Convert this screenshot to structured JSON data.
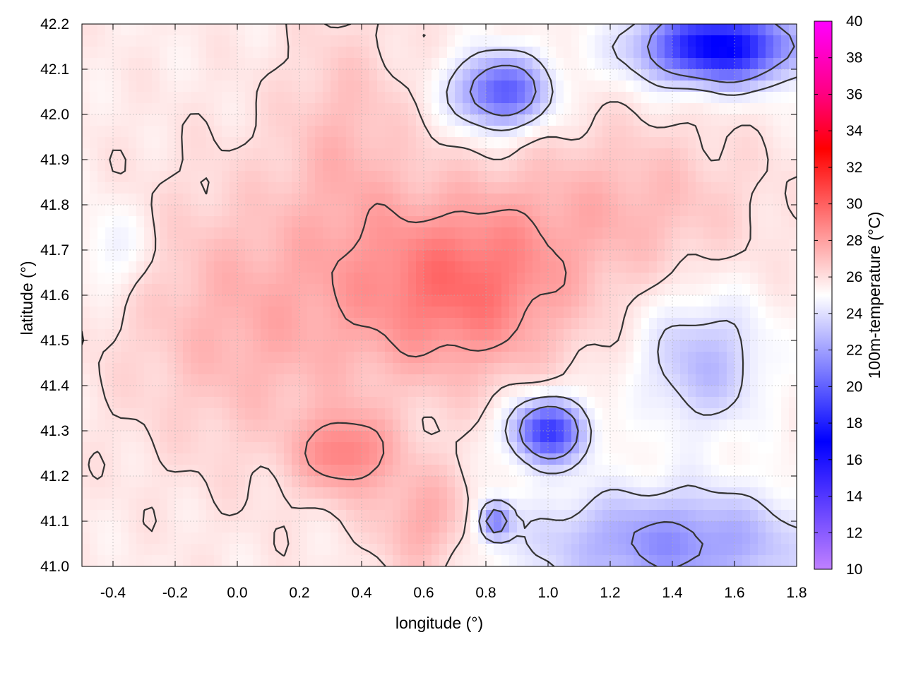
{
  "chart_data": {
    "type": "heatmap",
    "title": "",
    "xlabel": "longitude (°)",
    "ylabel": "latitude (°)",
    "colorbar_label": "100m-temperature (°C)",
    "xlim": [
      -0.5,
      1.8
    ],
    "ylim": [
      41.0,
      42.2
    ],
    "x_ticks": [
      "-0.4",
      "-0.2",
      "0.0",
      "0.2",
      "0.4",
      "0.6",
      "0.8",
      "1.0",
      "1.2",
      "1.4",
      "1.6",
      "1.8"
    ],
    "y_ticks": [
      "41.0",
      "41.1",
      "41.2",
      "41.3",
      "41.4",
      "41.5",
      "41.6",
      "41.7",
      "41.8",
      "41.9",
      "42.0",
      "42.1",
      "42.2"
    ],
    "colorbar_range": [
      10,
      40
    ],
    "colorbar_ticks": [
      "10",
      "12",
      "14",
      "16",
      "18",
      "20",
      "22",
      "24",
      "26",
      "28",
      "30",
      "32",
      "34",
      "36",
      "38",
      "40"
    ],
    "colorbar_stops": [
      {
        "value": 10,
        "color": "#c080ff"
      },
      {
        "value": 17,
        "color": "#0000ff"
      },
      {
        "value": 21,
        "color": "#8080ff"
      },
      {
        "value": 25,
        "color": "#ffffff"
      },
      {
        "value": 29,
        "color": "#ff8080"
      },
      {
        "value": 33,
        "color": "#ff0000"
      },
      {
        "value": 36,
        "color": "#ff0080"
      },
      {
        "value": 40,
        "color": "#ff00ff"
      }
    ],
    "contour_levels": [
      22,
      24,
      26,
      28
    ],
    "contour_color": "#333333",
    "grid": true,
    "regions": [
      {
        "lon": 0.72,
        "lat": 41.62,
        "temp": 29.5,
        "sx": 0.35,
        "sy": 0.2
      },
      {
        "lon": 0.35,
        "lat": 41.25,
        "temp": 28.8,
        "sx": 0.15,
        "sy": 0.09
      },
      {
        "lon": 0.05,
        "lat": 41.55,
        "temp": 27.5,
        "sx": 0.4,
        "sy": 0.3
      },
      {
        "lon": 1.25,
        "lat": 41.8,
        "temp": 27.2,
        "sx": 0.4,
        "sy": 0.18
      },
      {
        "lon": 0.6,
        "lat": 41.1,
        "temp": 27.8,
        "sx": 0.15,
        "sy": 0.12
      },
      {
        "lon": 0.35,
        "lat": 41.95,
        "temp": 27.0,
        "sx": 0.2,
        "sy": 0.25
      },
      {
        "lon": 1.0,
        "lat": 41.3,
        "temp": 18.5,
        "sx": 0.12,
        "sy": 0.07
      },
      {
        "lon": 1.55,
        "lat": 42.15,
        "temp": 16.5,
        "sx": 0.25,
        "sy": 0.08
      },
      {
        "lon": 0.85,
        "lat": 42.05,
        "temp": 19.5,
        "sx": 0.15,
        "sy": 0.08
      },
      {
        "lon": 1.4,
        "lat": 41.05,
        "temp": 21.5,
        "sx": 0.45,
        "sy": 0.12
      },
      {
        "lon": 1.5,
        "lat": 41.45,
        "temp": 22.8,
        "sx": 0.2,
        "sy": 0.15
      },
      {
        "lon": 0.83,
        "lat": 41.1,
        "temp": 20.5,
        "sx": 0.05,
        "sy": 0.04
      },
      {
        "lon": -0.4,
        "lat": 41.7,
        "temp": 24.2,
        "sx": 0.12,
        "sy": 0.1
      }
    ]
  }
}
